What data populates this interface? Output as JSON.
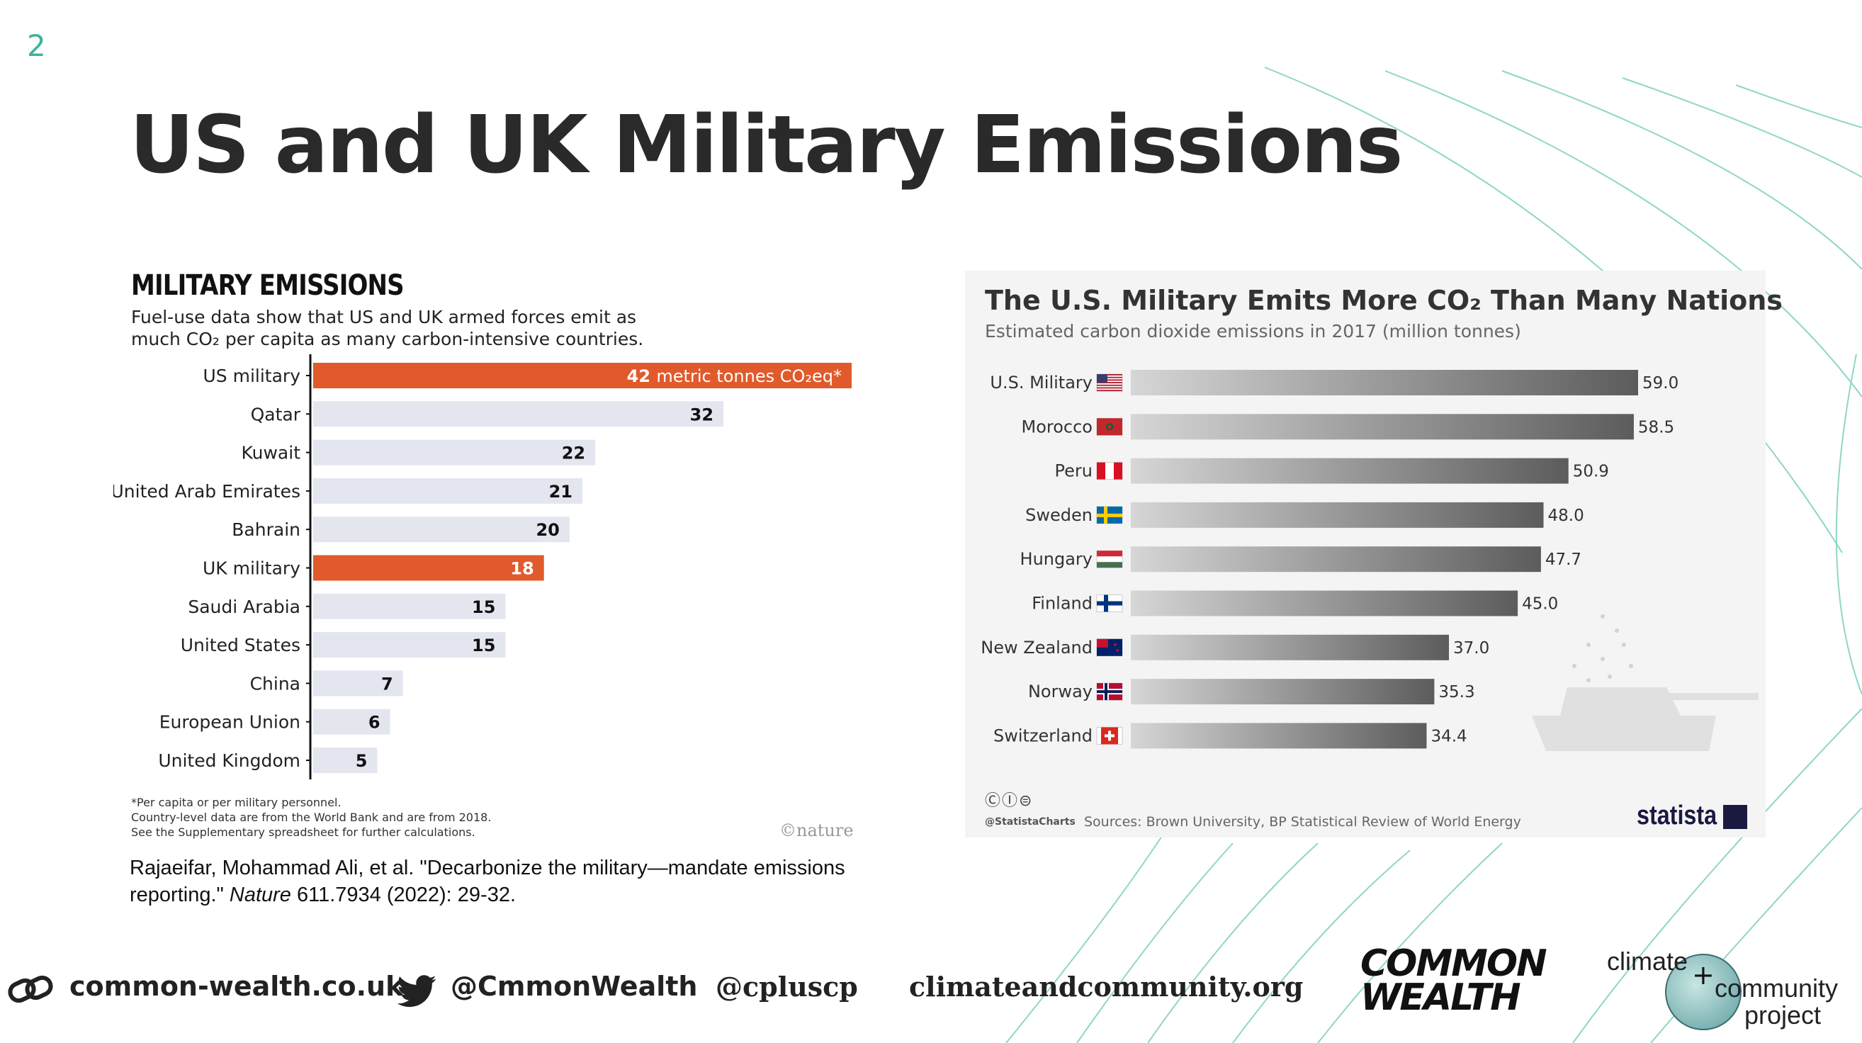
{
  "slide": {
    "number": "2",
    "title": "US and UK Military Emissions"
  },
  "nature_chart": {
    "title": "MILITARY EMISSIONS",
    "subtitle_line1": "Fuel-use data show that US and UK armed forces emit as",
    "subtitle_line2": "much CO₂ per capita as many carbon-intensive countries.",
    "footnote_lines": [
      "*Per capita or per military personnel.",
      "Country-level data are from the World Bank and are from 2018.",
      "See the Supplementary spreadsheet for further calculations."
    ],
    "brand": "©nature",
    "unit_label": "metric tonnes CO₂eq*",
    "highlight_color": "#e05a2b",
    "bar_color": "#e4e6ef",
    "chart_data": {
      "type": "bar",
      "orientation": "horizontal",
      "categories": [
        "US military",
        "Qatar",
        "Kuwait",
        "United Arab Emirates",
        "Bahrain",
        "UK military",
        "Saudi Arabia",
        "United States",
        "China",
        "European Union",
        "United Kingdom"
      ],
      "values": [
        42,
        32,
        22,
        21,
        20,
        18,
        15,
        15,
        7,
        6,
        5
      ],
      "highlighted": [
        "US military",
        "UK military"
      ],
      "xlim": [
        0,
        42
      ]
    }
  },
  "citation": {
    "text_before": "Rajaeifar, Mohammad Ali, et al. \"Decarbonize the military—mandate emissions reporting.\" ",
    "journal": "Nature",
    "text_after": " 611.7934 (2022): 29-32."
  },
  "statista_chart": {
    "title": "The U.S. Military Emits More CO₂ Than Many Nations",
    "subtitle": "Estimated carbon dioxide emissions in 2017 (million tonnes)",
    "cc_icons": "ⒸⒾ⊜",
    "handle": "@StatistaCharts",
    "sources": "Sources: Brown University, BP Statistical Review of World Energy",
    "brand": "statista",
    "chart_data": {
      "type": "bar",
      "orientation": "horizontal",
      "categories": [
        "U.S. Military",
        "Morocco",
        "Peru",
        "Sweden",
        "Hungary",
        "Finland",
        "New Zealand",
        "Norway",
        "Switzerland"
      ],
      "values": [
        59.0,
        58.5,
        50.9,
        48.0,
        47.7,
        45.0,
        37.0,
        35.3,
        34.4
      ],
      "value_labels": [
        "59.0",
        "58.5",
        "50.9",
        "48.0",
        "47.7",
        "45.0",
        "37.0",
        "35.3",
        "34.4"
      ],
      "xlim": [
        0,
        59
      ],
      "flag_icons": [
        "us-flag-icon",
        "morocco-flag-icon",
        "peru-flag-icon",
        "sweden-flag-icon",
        "hungary-flag-icon",
        "finland-flag-icon",
        "new-zealand-flag-icon",
        "norway-flag-icon",
        "switzerland-flag-icon"
      ]
    }
  },
  "footer": {
    "website": "common-wealth.co.uk",
    "twitter_handle": "@CmmonWealth",
    "second_handle": "@cpluscp",
    "second_website": "climateandcommunity.org",
    "logo_common_line1": "COMMON",
    "logo_common_line2": "WEALTH",
    "logo_ccp_climate": "climate",
    "logo_ccp_plus": "+",
    "logo_ccp_community": "community",
    "logo_ccp_project": "project"
  },
  "colors": {
    "accent": "#3cb39a",
    "nature_orange": "#e05a2b",
    "statista_bar_dark": "#5c5c5c"
  }
}
